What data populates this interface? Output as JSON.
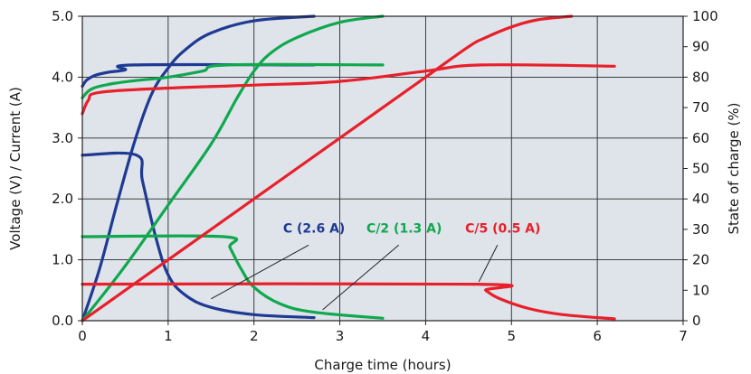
{
  "chart_data": {
    "type": "line",
    "xlabel": "Charge time (hours)",
    "ylabel_left": "Voltage (V) / Current (A)",
    "ylabel_right": "State of charge (%)",
    "xlim": [
      0,
      7
    ],
    "ylim_left": [
      0,
      5
    ],
    "ylim_right": [
      0,
      100
    ],
    "x_ticks": [
      "0",
      "1",
      "2",
      "3",
      "4",
      "5",
      "6",
      "7"
    ],
    "y_left_ticks": [
      "0.0",
      "1.0",
      "2.0",
      "3.0",
      "4.0",
      "5.0"
    ],
    "y_right_ticks": [
      "0",
      "10",
      "20",
      "30",
      "40",
      "50",
      "60",
      "70",
      "80",
      "90",
      "100"
    ],
    "grid": true,
    "groups": [
      {
        "name": "C (2.6 A)",
        "color": "#1f3a93",
        "voltage": [
          [
            0,
            3.85
          ],
          [
            0.05,
            3.95
          ],
          [
            0.15,
            4.03
          ],
          [
            0.3,
            4.08
          ],
          [
            0.5,
            4.12
          ],
          [
            0.6,
            4.2
          ],
          [
            2.7,
            4.2
          ]
        ],
        "current": [
          [
            0,
            2.72
          ],
          [
            0.63,
            2.72
          ],
          [
            0.7,
            2.3
          ],
          [
            0.85,
            1.4
          ],
          [
            1.0,
            0.75
          ],
          [
            1.2,
            0.42
          ],
          [
            1.5,
            0.22
          ],
          [
            2.0,
            0.1
          ],
          [
            2.7,
            0.05
          ]
        ],
        "soc": [
          [
            0,
            0
          ],
          [
            0.2,
            17
          ],
          [
            0.4,
            38
          ],
          [
            0.6,
            58
          ],
          [
            0.8,
            74
          ],
          [
            1.0,
            83
          ],
          [
            1.2,
            89
          ],
          [
            1.5,
            94.5
          ],
          [
            2.0,
            98.5
          ],
          [
            2.7,
            100
          ]
        ]
      },
      {
        "name": "C/2 (1.3 A)",
        "color": "#10a84e",
        "voltage": [
          [
            0,
            3.66
          ],
          [
            0.1,
            3.8
          ],
          [
            0.3,
            3.88
          ],
          [
            0.6,
            3.94
          ],
          [
            1.0,
            4.0
          ],
          [
            1.4,
            4.1
          ],
          [
            1.7,
            4.2
          ],
          [
            3.5,
            4.2
          ]
        ],
        "current": [
          [
            0,
            1.38
          ],
          [
            1.65,
            1.38
          ],
          [
            1.72,
            1.2
          ],
          [
            1.85,
            0.85
          ],
          [
            2.0,
            0.55
          ],
          [
            2.3,
            0.28
          ],
          [
            2.7,
            0.14
          ],
          [
            3.5,
            0.04
          ]
        ],
        "soc": [
          [
            0,
            0
          ],
          [
            0.5,
            18
          ],
          [
            1.0,
            38
          ],
          [
            1.5,
            58
          ],
          [
            1.8,
            73
          ],
          [
            2.0,
            82
          ],
          [
            2.2,
            88
          ],
          [
            2.5,
            93
          ],
          [
            3.0,
            98
          ],
          [
            3.5,
            100
          ]
        ]
      },
      {
        "name": "C/5 (0.5 A)",
        "color": "#e8202a",
        "voltage": [
          [
            0,
            3.4
          ],
          [
            0.07,
            3.62
          ],
          [
            0.2,
            3.75
          ],
          [
            1.0,
            3.82
          ],
          [
            2.0,
            3.87
          ],
          [
            3.0,
            3.93
          ],
          [
            4.0,
            4.1
          ],
          [
            4.65,
            4.2
          ],
          [
            6.2,
            4.18
          ]
        ],
        "current": [
          [
            0,
            0.6
          ],
          [
            4.62,
            0.6
          ],
          [
            4.7,
            0.5
          ],
          [
            4.85,
            0.37
          ],
          [
            5.2,
            0.2
          ],
          [
            5.6,
            0.1
          ],
          [
            6.2,
            0.03
          ]
        ],
        "soc": [
          [
            0,
            0
          ],
          [
            1.0,
            20
          ],
          [
            2.0,
            40
          ],
          [
            3.0,
            60
          ],
          [
            4.0,
            80
          ],
          [
            4.5,
            90
          ],
          [
            4.7,
            93
          ],
          [
            5.0,
            96.5
          ],
          [
            5.3,
            98.8
          ],
          [
            5.7,
            100
          ]
        ]
      }
    ],
    "annotations": [
      {
        "text": "C (2.6 A)",
        "color": "#1f3a93",
        "label_x": 2.7,
        "label_y": 1.45,
        "to": [
          1.5,
          0.3
        ]
      },
      {
        "text": "C/2 (1.3 A)",
        "color": "#10a84e",
        "label_x": 3.75,
        "label_y": 1.45,
        "to": [
          2.8,
          0.12
        ]
      },
      {
        "text": "C/5 (0.5 A)",
        "color": "#e8202a",
        "label_x": 4.9,
        "label_y": 1.45,
        "to": [
          4.62,
          0.58
        ]
      }
    ]
  }
}
